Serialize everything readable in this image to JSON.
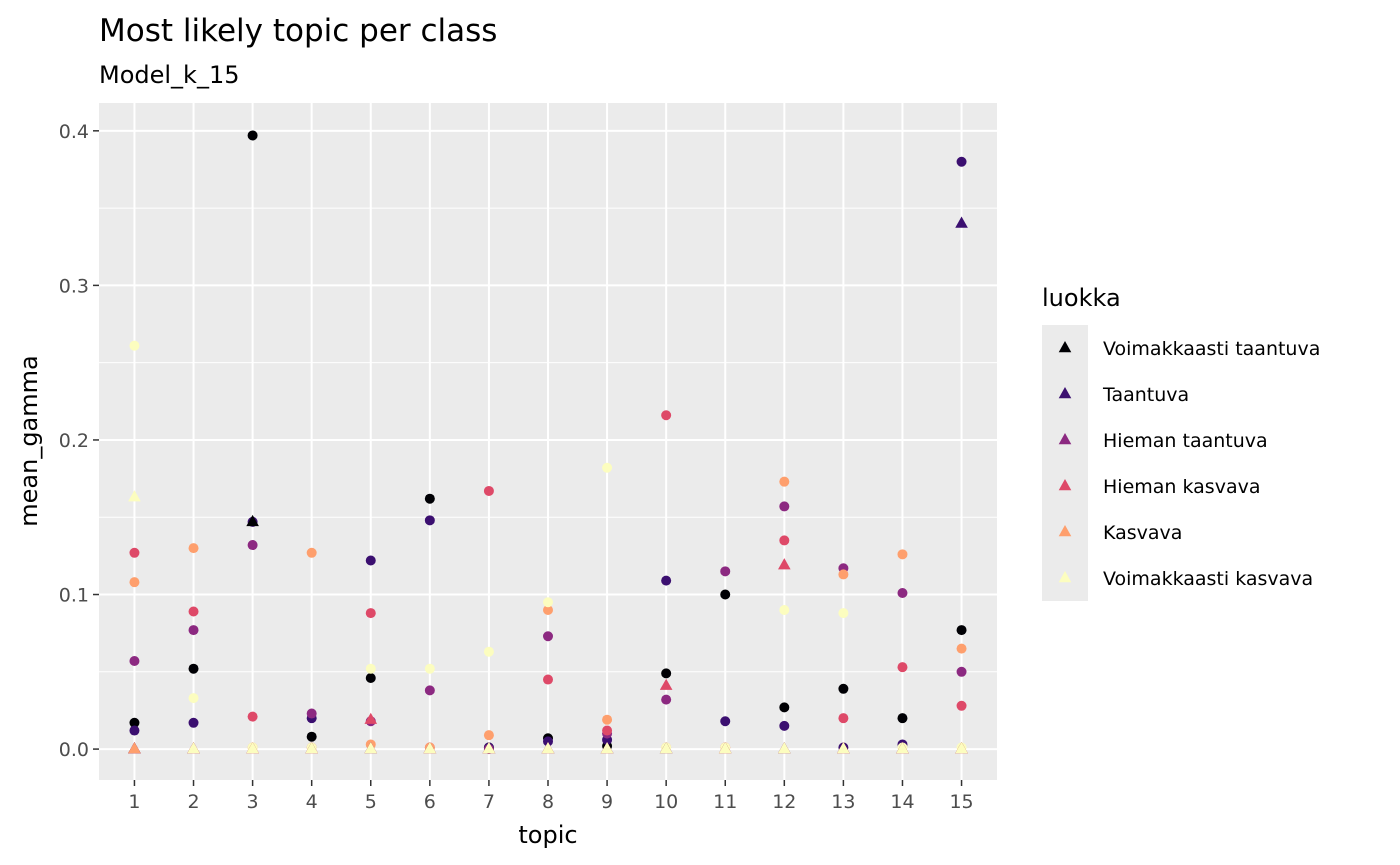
{
  "chart_data": {
    "type": "scatter",
    "title": "Most likely topic per class",
    "subtitle": "Model_k_15",
    "xlabel": "topic",
    "ylabel": "mean_gamma",
    "x": [
      1,
      2,
      3,
      4,
      5,
      6,
      7,
      8,
      9,
      10,
      11,
      12,
      13,
      14,
      15
    ],
    "x_ticks": [
      "1",
      "2",
      "3",
      "4",
      "5",
      "6",
      "7",
      "8",
      "9",
      "10",
      "11",
      "12",
      "13",
      "14",
      "15"
    ],
    "xlim": [
      0.4,
      15.6
    ],
    "y_ticks": [
      0.0,
      0.1,
      0.2,
      0.3,
      0.4
    ],
    "y_tick_labels": [
      "0.0",
      "0.1",
      "0.2",
      "0.3",
      "0.4"
    ],
    "ylim": [
      -0.02,
      0.418
    ],
    "grid": true,
    "legend": {
      "title": "luokka",
      "placement": "right"
    },
    "series": [
      {
        "name": "Voimakkaasti taantuva",
        "color": "#000004",
        "circles": [
          0.017,
          0.052,
          0.397,
          0.008,
          0.046,
          0.162,
          0.001,
          0.007,
          0.002,
          0.049,
          0.1,
          0.027,
          0.039,
          0.02,
          0.077
        ],
        "triangles": [
          0.0,
          0.0,
          0.147,
          0.0,
          0.0,
          0.0,
          0.0,
          0.0,
          0.0,
          0.0,
          0.0,
          0.0,
          0.0,
          0.0,
          0.0
        ]
      },
      {
        "name": "Taantuva",
        "color": "#3b0f70",
        "circles": [
          0.012,
          0.017,
          0.147,
          0.02,
          0.122,
          0.148,
          0.001,
          0.005,
          0.006,
          0.109,
          0.018,
          0.015,
          0.001,
          0.003,
          0.38
        ],
        "triangles": [
          0.0,
          0.0,
          0.0,
          0.0,
          0.0,
          0.0,
          0.0,
          0.0,
          0.0,
          0.0,
          0.0,
          0.0,
          0.0,
          0.0,
          0.34
        ]
      },
      {
        "name": "Hieman taantuva",
        "color": "#8c2981",
        "circles": [
          0.057,
          0.077,
          0.132,
          0.023,
          0.018,
          0.038,
          0.0,
          0.073,
          0.01,
          0.032,
          0.115,
          0.157,
          0.117,
          0.101,
          0.05
        ],
        "triangles": [
          0.0,
          0.0,
          0.0,
          0.0,
          0.0,
          0.0,
          0.0,
          0.0,
          0.0,
          0.0,
          0.0,
          0.0,
          0.0,
          0.0,
          0.0
        ]
      },
      {
        "name": "Hieman kasvava",
        "color": "#de4968",
        "circles": [
          0.127,
          0.089,
          0.021,
          0.001,
          0.088,
          0.001,
          0.167,
          0.045,
          0.012,
          0.216,
          0.001,
          0.135,
          0.02,
          0.053,
          0.028
        ],
        "triangles": [
          0.0,
          0.0,
          0.0,
          0.0,
          0.019,
          0.0,
          0.0,
          0.0,
          0.0,
          0.041,
          0.0,
          0.119,
          0.0,
          0.0,
          0.0
        ]
      },
      {
        "name": "Kasvava",
        "color": "#fe9f6d",
        "circles": [
          0.108,
          0.13,
          0.001,
          0.127,
          0.003,
          0.001,
          0.009,
          0.09,
          0.019,
          0.001,
          0.001,
          0.173,
          0.113,
          0.126,
          0.065
        ],
        "triangles": [
          0.0,
          0.0,
          0.0,
          0.0,
          0.0,
          0.0,
          0.0,
          0.0,
          0.0,
          0.0,
          0.0,
          0.0,
          0.0,
          0.0,
          0.0
        ]
      },
      {
        "name": "Voimakkaasti kasvava",
        "color": "#fcfdbf",
        "circles": [
          0.261,
          0.033,
          0.001,
          0.001,
          0.052,
          0.052,
          0.063,
          0.095,
          0.182,
          0.001,
          0.001,
          0.09,
          0.088,
          0.001,
          0.001
        ],
        "triangles": [
          0.163,
          0.0,
          0.0,
          0.0,
          0.0,
          0.0,
          0.0,
          0.0,
          0.0,
          0.0,
          0.0,
          0.0,
          0.0,
          0.0,
          0.0
        ]
      }
    ]
  }
}
